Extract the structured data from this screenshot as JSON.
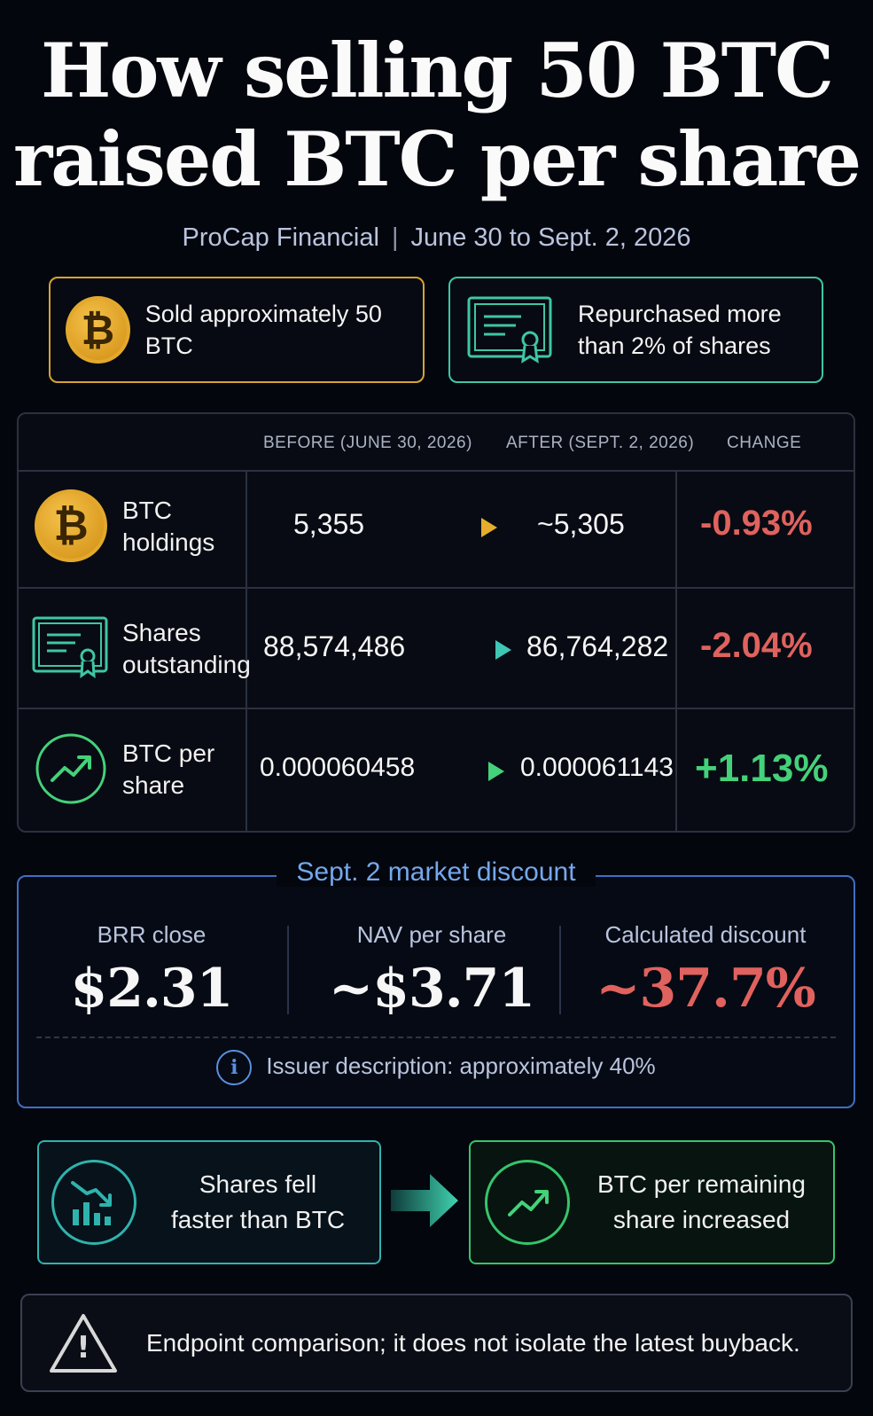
{
  "header": {
    "title_line1": "How selling 50 BTC",
    "title_line2": "raised BTC per share",
    "company": "ProCap Financial",
    "separator": "|",
    "period": "June 30 to Sept. 2, 2026"
  },
  "highlights": {
    "sold": "Sold approximately 50 BTC",
    "repurchased_line1": "Repurchased more",
    "repurchased_line2": "than 2% of shares"
  },
  "table": {
    "headers": {
      "before": "BEFORE (JUNE 30, 2026)",
      "after": "AFTER (SEPT. 2, 2026)",
      "change": "CHANGE"
    },
    "rows": [
      {
        "label_line1": "BTC",
        "label_line2": "holdings",
        "before": "5,355",
        "after": "~5,305",
        "change": "-0.93%",
        "icon": "bitcoin-icon"
      },
      {
        "label_line1": "Shares",
        "label_line2": "outstanding",
        "before": "88,574,486",
        "after": "86,764,282",
        "change": "-2.04%",
        "icon": "certificate-icon"
      },
      {
        "label_line1": "BTC per",
        "label_line2": "share",
        "before": "0.000060458",
        "after": "0.000061143",
        "change": "+1.13%",
        "icon": "trend-up-icon"
      }
    ]
  },
  "discount": {
    "title": "Sept. 2 market discount",
    "brr_label": "BRR close",
    "brr_value": "$2.31",
    "nav_label": "NAV per share",
    "nav_value": "~$3.71",
    "disc_label": "Calculated discount",
    "disc_value": "~37.7%",
    "info_glyph": "i",
    "note": "Issuer description: approximately 40%"
  },
  "flow": {
    "left_line1": "Shares fell",
    "left_line2": "faster than BTC",
    "right_line1": "BTC per remaining",
    "right_line2": "share increased"
  },
  "footer": {
    "warning_glyph": "!",
    "warning": "Endpoint comparison; it does not isolate the latest buyback."
  },
  "colors": {
    "gold": "#d6a332",
    "teal": "#3fc6a4",
    "green": "#44d17a",
    "red": "#e0625e",
    "blue": "#5a8fe0"
  }
}
